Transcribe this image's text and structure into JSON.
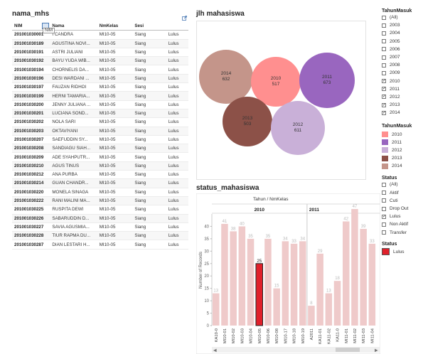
{
  "table_panel": {
    "title": "nama_mhs",
    "headers": [
      "NIM",
      "Nama",
      "NmKelas",
      "Sesi",
      ""
    ],
    "tooltip": "NIM",
    "rows": [
      [
        "201001030001",
        "I CANDRA",
        "MI10-05",
        "Siang",
        "Lulus"
      ],
      [
        "201001030189",
        "AGUSTINA NOVI...",
        "MI10-05",
        "Siang",
        "Lulus"
      ],
      [
        "201001030191",
        "ASTRI JULIANI",
        "MI10-05",
        "Siang",
        "Lulus"
      ],
      [
        "201001030192",
        "BAYU YUDA WIB...",
        "MI10-05",
        "Siang",
        "Lulus"
      ],
      [
        "201001030194",
        "CHORNELIS DA...",
        "MI10-05",
        "Siang",
        "Lulus"
      ],
      [
        "201001030196",
        "DESI WARDANI ...",
        "MI10-05",
        "Siang",
        "Lulus"
      ],
      [
        "201001030197",
        "FAUZAN RIDHOI",
        "MI10-05",
        "Siang",
        "Lulus"
      ],
      [
        "201001030199",
        "HERNI TAMARIA...",
        "MI10-05",
        "Siang",
        "Lulus"
      ],
      [
        "201001030200",
        "JENNY JULIANA ...",
        "MI10-05",
        "Siang",
        "Lulus"
      ],
      [
        "201001030201",
        "LUCIANA SOND...",
        "MI10-05",
        "Siang",
        "Lulus"
      ],
      [
        "201001030202",
        "NOLA SARI",
        "MI10-05",
        "Siang",
        "Lulus"
      ],
      [
        "201001030203",
        "OKTAVIYANI",
        "MI10-05",
        "Siang",
        "Lulus"
      ],
      [
        "201001030207",
        "SAEFUDDIN SY...",
        "MI10-05",
        "Siang",
        "Lulus"
      ],
      [
        "201001030208",
        "SANDIAGU SIAH...",
        "MI10-05",
        "Siang",
        "Lulus"
      ],
      [
        "201001030209",
        "ADE SYAHPUTR...",
        "MI10-05",
        "Siang",
        "Lulus"
      ],
      [
        "201001030210",
        "AGUS TINUS",
        "MI10-05",
        "Siang",
        "Lulus"
      ],
      [
        "201001030212",
        "ANA PURBA",
        "MI10-05",
        "Siang",
        "Lulus"
      ],
      [
        "201001030214",
        "GUAN CHANDR...",
        "MI10-05",
        "Siang",
        "Lulus"
      ],
      [
        "201001030220",
        "MONELA SINAGA",
        "MI10-05",
        "Siang",
        "Lulus"
      ],
      [
        "201001030222",
        "RANI MALINI MA...",
        "MI10-05",
        "Siang",
        "Lulus"
      ],
      [
        "201001030225",
        "RUSPITA DEWI",
        "MI10-05",
        "Siang",
        "Lulus"
      ],
      [
        "201001030226",
        "SABARUDDIN D...",
        "MI10-05",
        "Siang",
        "Lulus"
      ],
      [
        "201001030227",
        "SAVIA AGUSMIA...",
        "MI10-05",
        "Siang",
        "Lulus"
      ],
      [
        "201001030228",
        "TIUR RAPMA DU...",
        "MI10-05",
        "Siang",
        "Lulus"
      ],
      [
        "201001030287",
        "DIAN LESTARI H...",
        "MI10-05",
        "Siang",
        "Lulus"
      ]
    ]
  },
  "bubble_panel": {
    "title": "jlh mahasiswa",
    "bubbles": [
      {
        "year": "2014",
        "value": "632",
        "color": "#c4958a"
      },
      {
        "year": "2010",
        "value": "517",
        "color": "#ff8f8f"
      },
      {
        "year": "2011",
        "value": "673",
        "color": "#9966bf"
      },
      {
        "year": "2013",
        "value": "503",
        "color": "#8c5148"
      },
      {
        "year": "2012",
        "value": "611",
        "color": "#c9b0d8"
      }
    ]
  },
  "filters": {
    "tahun_masuk": {
      "title": "TahunMasuk",
      "items": [
        {
          "label": "(All)",
          "checked": false
        },
        {
          "label": "2003",
          "checked": false
        },
        {
          "label": "2004",
          "checked": false
        },
        {
          "label": "2005",
          "checked": false
        },
        {
          "label": "2006",
          "checked": false
        },
        {
          "label": "2007",
          "checked": false
        },
        {
          "label": "2008",
          "checked": false
        },
        {
          "label": "2009",
          "checked": false
        },
        {
          "label": "2010",
          "checked": true
        },
        {
          "label": "2011",
          "checked": true
        },
        {
          "label": "2012",
          "checked": true
        },
        {
          "label": "2013",
          "checked": true
        },
        {
          "label": "2014",
          "checked": true
        }
      ]
    },
    "tahun_legend": {
      "title": "TahunMasuk",
      "items": [
        {
          "label": "2010",
          "color": "#ff8f8f"
        },
        {
          "label": "2011",
          "color": "#9966bf"
        },
        {
          "label": "2012",
          "color": "#c9b0d8"
        },
        {
          "label": "2013",
          "color": "#8c5148"
        },
        {
          "label": "2014",
          "color": "#c4958a"
        }
      ]
    },
    "status": {
      "title": "Status",
      "items": [
        {
          "label": "(All)",
          "checked": false
        },
        {
          "label": "Aktif",
          "checked": false
        },
        {
          "label": "Cuti",
          "checked": false
        },
        {
          "label": "Drop Out",
          "checked": false
        },
        {
          "label": "Lulus",
          "checked": true
        },
        {
          "label": "Non Aktif",
          "checked": false
        },
        {
          "label": "Transfer",
          "checked": false
        }
      ]
    },
    "status_legend": {
      "title": "Status",
      "items": [
        {
          "label": "Lulus",
          "color": "#e0202b"
        }
      ]
    }
  },
  "bar_panel": {
    "title": "status_mahasiswa",
    "column_header": "Tahun  /  NmKelas",
    "groups": [
      "2010",
      "2011"
    ]
  },
  "chart_data": {
    "type": "bar",
    "ylabel": "Number of Records",
    "ylim": [
      0,
      45
    ],
    "yticks": [
      0,
      5,
      10,
      15,
      20,
      25,
      30,
      35,
      40
    ],
    "categories": [
      "KA10-0",
      "MI10-01",
      "MI10-02",
      "MI10-03",
      "MI10-04",
      "MI10-05",
      "MI10-06",
      "MI10-08",
      "MI10-17",
      "MI10-18",
      "MI10-19",
      "A2011",
      "KA11-01",
      "KA11-02",
      "KA11-0",
      "MI11-01",
      "MI11-02",
      "MI11-03",
      "MI11-04"
    ],
    "group_of": [
      "2010",
      "2010",
      "2010",
      "2010",
      "2010",
      "2010",
      "2010",
      "2010",
      "2010",
      "2010",
      "2010",
      "2011",
      "2011",
      "2011",
      "2011",
      "2011",
      "2011",
      "2011",
      "2011"
    ],
    "values": [
      13,
      41,
      38,
      40,
      35,
      25,
      35,
      15,
      34,
      33,
      34,
      8,
      29,
      13,
      18,
      42,
      47,
      39,
      33
    ],
    "highlight_index": 5,
    "bar_color": "#efcaca",
    "highlight_color": "#e0202b"
  }
}
